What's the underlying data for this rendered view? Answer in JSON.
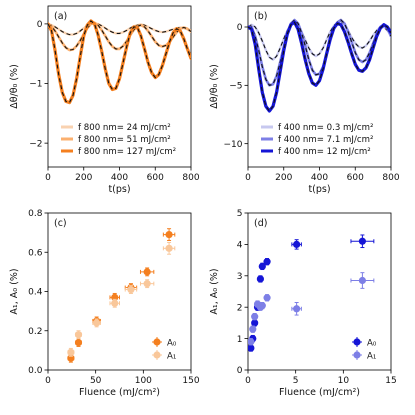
{
  "chart_data": [
    {
      "panel": "(a)",
      "type": "line",
      "xlabel": "t(ps)",
      "ylabel": "Δθ/θ₀ (%)",
      "xlim": [
        0,
        800
      ],
      "ylim": [
        -2.4,
        0.3
      ],
      "xticks": [
        0,
        200,
        400,
        600,
        800
      ],
      "yticks": [
        0,
        -1,
        -2
      ],
      "legend_loc": "lower right",
      "series": [
        {
          "name": "f 800 nm= 24 mJ/cm²",
          "color": "#f9d2b0",
          "x": [
            0,
            20,
            40,
            60,
            80,
            100,
            120,
            140,
            160,
            180,
            200,
            220,
            240,
            260,
            280,
            300,
            320,
            340,
            360,
            380,
            400,
            420,
            440,
            460,
            480,
            500,
            520,
            540,
            560,
            580,
            600,
            620,
            640,
            660,
            680,
            700,
            720,
            740,
            760,
            780,
            800
          ],
          "y": [
            0,
            -0.02,
            -0.05,
            -0.09,
            -0.13,
            -0.16,
            -0.18,
            -0.18,
            -0.16,
            -0.12,
            -0.07,
            -0.03,
            0,
            0.01,
            0,
            -0.03,
            -0.07,
            -0.11,
            -0.14,
            -0.16,
            -0.16,
            -0.14,
            -0.11,
            -0.07,
            -0.04,
            -0.02,
            -0.01,
            -0.02,
            -0.05,
            -0.08,
            -0.11,
            -0.13,
            -0.14,
            -0.13,
            -0.11,
            -0.09,
            -0.07,
            -0.06,
            -0.07,
            -0.09,
            -0.11
          ]
        },
        {
          "name": "f 800 nm= 51 mJ/cm²",
          "color": "#fbb06f",
          "x": [
            0,
            20,
            40,
            60,
            80,
            100,
            120,
            140,
            160,
            180,
            200,
            220,
            240,
            260,
            280,
            300,
            320,
            340,
            360,
            380,
            400,
            420,
            440,
            460,
            480,
            500,
            520,
            540,
            560,
            580,
            600,
            620,
            640,
            660,
            680,
            700,
            720,
            740,
            760,
            780,
            800
          ],
          "y": [
            0,
            -0.04,
            -0.12,
            -0.22,
            -0.32,
            -0.4,
            -0.44,
            -0.43,
            -0.37,
            -0.28,
            -0.17,
            -0.07,
            0,
            0.02,
            -0.02,
            -0.1,
            -0.2,
            -0.3,
            -0.38,
            -0.42,
            -0.42,
            -0.37,
            -0.29,
            -0.19,
            -0.1,
            -0.04,
            -0.02,
            -0.05,
            -0.12,
            -0.21,
            -0.3,
            -0.36,
            -0.38,
            -0.36,
            -0.3,
            -0.22,
            -0.14,
            -0.08,
            -0.06,
            -0.08,
            -0.13
          ]
        },
        {
          "name": "f 800 nm= 127 mJ/cm²",
          "color": "#f47f1f",
          "x": [
            0,
            20,
            40,
            60,
            80,
            100,
            120,
            140,
            160,
            180,
            200,
            220,
            240,
            260,
            280,
            300,
            320,
            340,
            360,
            380,
            400,
            420,
            440,
            460,
            480,
            500,
            520,
            540,
            560,
            580,
            600,
            620,
            640,
            660,
            680,
            700,
            720,
            740,
            760,
            780,
            800
          ],
          "y": [
            0,
            -0.12,
            -0.45,
            -0.85,
            -1.15,
            -1.3,
            -1.32,
            -1.2,
            -0.92,
            -0.55,
            -0.2,
            -0.02,
            0.05,
            0,
            -0.18,
            -0.45,
            -0.75,
            -1.0,
            -1.1,
            -1.08,
            -0.92,
            -0.65,
            -0.38,
            -0.15,
            -0.05,
            -0.06,
            -0.2,
            -0.42,
            -0.65,
            -0.82,
            -0.9,
            -0.85,
            -0.7,
            -0.5,
            -0.3,
            -0.15,
            -0.08,
            -0.12,
            -0.25,
            -0.42,
            -0.58
          ]
        }
      ]
    },
    {
      "panel": "(b)",
      "type": "line",
      "xlabel": "t(ps)",
      "ylabel": "Δθ/θ₀ (%)",
      "xlim": [
        0,
        800
      ],
      "ylim": [
        -12,
        1.8
      ],
      "xticks": [
        0,
        200,
        400,
        600,
        800
      ],
      "yticks": [
        0,
        -5,
        -10
      ],
      "legend_loc": "lower right",
      "series": [
        {
          "name": "f 400 nm= 0.3 mJ/cm²",
          "color": "#c7c8ef",
          "x": [
            0,
            20,
            40,
            60,
            80,
            100,
            120,
            140,
            160,
            180,
            200,
            220,
            240,
            260,
            280,
            300,
            320,
            340,
            360,
            380,
            400,
            420,
            440,
            460,
            480,
            500,
            520,
            540,
            560,
            580,
            600,
            620,
            640,
            660,
            680,
            700,
            720,
            740,
            760,
            780,
            800
          ],
          "y": [
            0,
            0.2,
            0,
            -0.5,
            -1.2,
            -2.0,
            -2.6,
            -2.8,
            -2.5,
            -1.8,
            -1.0,
            -0.3,
            0.2,
            0.4,
            0.2,
            -0.4,
            -1.1,
            -1.8,
            -2.3,
            -2.5,
            -2.3,
            -1.8,
            -1.1,
            -0.4,
            0.1,
            0.4,
            0.5,
            0.2,
            -0.3,
            -0.9,
            -1.4,
            -1.7,
            -1.8,
            -1.6,
            -1.2,
            -0.7,
            -0.3,
            0,
            0,
            -0.3,
            -0.7
          ]
        },
        {
          "name": "f 400 nm= 7.1 mJ/cm²",
          "color": "#7d7fe6",
          "x": [
            0,
            20,
            40,
            60,
            80,
            100,
            120,
            140,
            160,
            180,
            200,
            220,
            240,
            260,
            280,
            300,
            320,
            340,
            360,
            380,
            400,
            420,
            440,
            460,
            480,
            500,
            520,
            540,
            560,
            580,
            600,
            620,
            640,
            660,
            680,
            700,
            720,
            740,
            760,
            780,
            800
          ],
          "y": [
            0,
            0,
            -0.8,
            -2.0,
            -3.4,
            -4.5,
            -5.0,
            -4.9,
            -4.2,
            -3.0,
            -1.7,
            -0.5,
            0.3,
            0.6,
            0.3,
            -0.5,
            -1.6,
            -2.8,
            -3.7,
            -4.1,
            -4.0,
            -3.4,
            -2.4,
            -1.2,
            -0.2,
            0.4,
            0.6,
            0.3,
            -0.4,
            -1.3,
            -2.2,
            -2.8,
            -3.0,
            -2.8,
            -2.2,
            -1.4,
            -0.6,
            0,
            0.2,
            -0.1,
            -0.8
          ]
        },
        {
          "name": "f 400 nm= 12 mJ/cm²",
          "color": "#1515d6",
          "x": [
            0,
            20,
            40,
            60,
            80,
            100,
            120,
            140,
            160,
            180,
            200,
            220,
            240,
            260,
            280,
            300,
            320,
            340,
            360,
            380,
            400,
            420,
            440,
            460,
            480,
            500,
            520,
            540,
            560,
            580,
            600,
            620,
            640,
            660,
            680,
            700,
            720,
            740,
            760,
            780,
            800
          ],
          "y": [
            0,
            -0.2,
            -1.5,
            -3.6,
            -5.6,
            -6.8,
            -7.2,
            -6.8,
            -5.6,
            -3.8,
            -2.0,
            -0.6,
            0.2,
            0.4,
            -0.2,
            -1.4,
            -2.8,
            -4.0,
            -4.8,
            -5.0,
            -4.6,
            -3.6,
            -2.3,
            -1.0,
            -0.1,
            0.3,
            0.2,
            -0.4,
            -1.3,
            -2.3,
            -3.2,
            -3.7,
            -3.8,
            -3.5,
            -2.8,
            -1.8,
            -0.8,
            -0.1,
            0.2,
            0,
            -0.5
          ]
        }
      ]
    },
    {
      "panel": "(c)",
      "type": "scatter",
      "xlabel": "Fluence (mJ/cm²)",
      "ylabel": "A₁, A₀ (%)",
      "xlim": [
        0,
        150
      ],
      "ylim": [
        0,
        0.8
      ],
      "xticks": [
        0,
        50,
        100,
        150
      ],
      "yticks": [
        0.0,
        0.2,
        0.4,
        0.6,
        0.8
      ],
      "legend_loc": "lower right",
      "series": [
        {
          "name": "A₀",
          "color": "#f47f1f",
          "x": [
            24,
            32,
            51,
            70,
            87,
            104,
            127
          ],
          "y": [
            0.06,
            0.14,
            0.25,
            0.37,
            0.42,
            0.5,
            0.69
          ],
          "xerr": [
            3,
            3,
            4,
            5,
            6,
            7,
            6
          ],
          "yerr": [
            0.02,
            0.02,
            0.02,
            0.02,
            0.02,
            0.02,
            0.03
          ]
        },
        {
          "name": "A₁",
          "color": "#f9c79a",
          "x": [
            24,
            32,
            51,
            70,
            87,
            104,
            127
          ],
          "y": [
            0.09,
            0.18,
            0.24,
            0.34,
            0.41,
            0.44,
            0.62
          ],
          "xerr": [
            3,
            3,
            4,
            5,
            6,
            7,
            6
          ],
          "yerr": [
            0.02,
            0.02,
            0.02,
            0.02,
            0.02,
            0.02,
            0.03
          ]
        }
      ]
    },
    {
      "panel": "(d)",
      "type": "scatter",
      "xlabel": "Fluence (mJ/cm²)",
      "ylabel": "A₁, A₀ (%)",
      "xlim": [
        0,
        15
      ],
      "ylim": [
        0,
        5
      ],
      "xticks": [
        0,
        5,
        10,
        15
      ],
      "yticks": [
        0,
        1,
        2,
        3,
        4,
        5
      ],
      "legend_loc": "lower right",
      "series": [
        {
          "name": "A₀",
          "color": "#1515d6",
          "x": [
            0.3,
            0.5,
            0.7,
            1.0,
            1.3,
            1.5,
            2.0,
            5.1,
            12
          ],
          "y": [
            0.7,
            1.0,
            1.5,
            2.0,
            2.9,
            3.3,
            3.45,
            4.0,
            4.1
          ],
          "xerr": [
            0.1,
            0.1,
            0.1,
            0.1,
            0.1,
            0.15,
            0.2,
            0.5,
            1.2
          ],
          "yerr": [
            0.1,
            0.1,
            0.1,
            0.1,
            0.1,
            0.1,
            0.1,
            0.15,
            0.2
          ]
        },
        {
          "name": "A₁",
          "color": "#7d7fe6",
          "x": [
            0.3,
            0.5,
            0.7,
            1.0,
            1.3,
            1.5,
            2.0,
            5.1,
            12
          ],
          "y": [
            0.9,
            1.3,
            1.7,
            2.1,
            2.0,
            2.05,
            2.3,
            1.95,
            2.85
          ],
          "xerr": [
            0.1,
            0.1,
            0.1,
            0.1,
            0.1,
            0.15,
            0.2,
            0.5,
            1.2
          ],
          "yerr": [
            0.1,
            0.1,
            0.1,
            0.1,
            0.1,
            0.1,
            0.1,
            0.2,
            0.25
          ]
        }
      ]
    }
  ]
}
